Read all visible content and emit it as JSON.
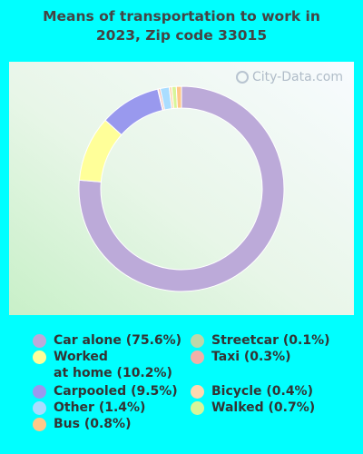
{
  "title": "Means of transportation to work in\n2023, Zip code 33015",
  "watermark": "City-Data.com",
  "chart_data": {
    "type": "pie",
    "style": "donut",
    "title": "Means of transportation to work in 2023, Zip code 33015",
    "slices": [
      {
        "label": "Car alone",
        "value": 75.6,
        "color": "#bcaad9",
        "legend": "Car alone (75.6%)"
      },
      {
        "label": "Worked at home",
        "value": 10.2,
        "color": "#ffff99",
        "legend": "Worked\nat home (10.2%)"
      },
      {
        "label": "Carpooled",
        "value": 9.5,
        "color": "#9999ee",
        "legend": "Carpooled (9.5%)"
      },
      {
        "label": "Streetcar",
        "value": 0.1,
        "color": "#bbd8aa",
        "legend": "Streetcar (0.1%)"
      },
      {
        "label": "Taxi",
        "value": 0.3,
        "color": "#f0b0a8",
        "legend": "Taxi (0.3%)"
      },
      {
        "label": "Other",
        "value": 1.4,
        "color": "#aaddff",
        "legend": "Other (1.4%)"
      },
      {
        "label": "Bicycle",
        "value": 0.4,
        "color": "#ffd8b0",
        "legend": "Bicycle (0.4%)"
      },
      {
        "label": "Walked",
        "value": 0.7,
        "color": "#d8f599",
        "legend": "Walked (0.7%)"
      },
      {
        "label": "Bus",
        "value": 0.8,
        "color": "#ffc888",
        "legend": "Bus (0.8%)"
      }
    ],
    "legend_order": [
      0,
      3,
      1,
      4,
      2,
      6,
      5,
      7,
      8
    ]
  }
}
